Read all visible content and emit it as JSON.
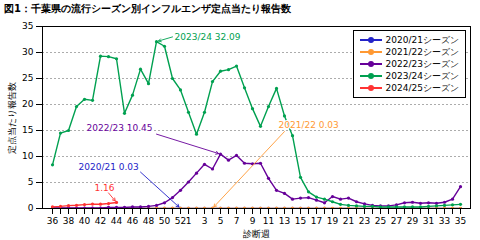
{
  "chart_data": {
    "type": "line",
    "title": "図1：千葉県の流行シーズン別インフルエンザ定点当たり報告数",
    "x_label": "診断週",
    "y_label": "定点当たり報告数",
    "categories": [
      "36",
      null,
      "38",
      null,
      "40",
      null,
      "42",
      null,
      "44",
      null,
      "46",
      null,
      "48",
      null,
      "50",
      null,
      "52",
      "1",
      null,
      "3",
      null,
      "5",
      null,
      "7",
      null,
      "9",
      null,
      "11",
      null,
      "13",
      null,
      "15",
      null,
      "17",
      null,
      "19",
      null,
      "21",
      null,
      "23",
      null,
      "25",
      null,
      "27",
      null,
      "29",
      null,
      "31",
      null,
      "33",
      null,
      "35"
    ],
    "series": [
      {
        "name": "2020/21シーズン",
        "color": "#2323c8",
        "values": [
          0.02,
          0.02,
          0.03,
          0.02,
          0.03,
          0.03,
          0.02,
          0.03,
          0.02,
          0.03,
          0.02,
          0.03,
          0.03,
          0.02,
          0.03,
          0.02,
          0.03,
          0.03,
          0.02,
          0.02,
          0.01,
          0.02,
          0.02,
          0.01,
          0.01,
          0.01,
          0.02,
          0.01,
          0.01,
          0.01,
          0.01,
          0.01,
          0.01,
          0.01,
          0.01,
          0,
          0,
          0,
          0.01,
          0,
          0,
          0,
          0,
          0.01,
          0,
          0,
          0,
          0,
          0,
          0,
          0,
          0
        ]
      },
      {
        "name": "2021/22シーズン",
        "color": "#ff9933",
        "values": [
          0.01,
          0.01,
          0.01,
          0.01,
          0.01,
          0.01,
          0.01,
          0.01,
          0.01,
          0.01,
          0.01,
          0.01,
          0.01,
          0.01,
          0.01,
          0.01,
          0.01,
          0.01,
          0.02,
          0.02,
          0.03,
          0.03,
          0.03,
          0.03,
          0.03,
          0.02,
          0.02,
          0.02,
          0.02,
          0.02,
          0.02,
          0.02,
          0.02,
          0.02,
          0.02,
          0.02,
          0.02,
          0.02,
          0.02,
          0.02,
          0.02,
          0.02,
          0.02,
          0.02,
          0.02,
          0.02,
          0.02,
          0.02,
          0.02,
          0.02,
          0.02,
          0.02
        ]
      },
      {
        "name": "2022/23シーズン",
        "color": "#660099",
        "values": [
          0.1,
          0.1,
          0.1,
          0.1,
          0.1,
          0.1,
          0.1,
          0.2,
          0.2,
          0.2,
          0.3,
          0.3,
          0.4,
          0.6,
          1.1,
          2.1,
          3.5,
          5.1,
          6.8,
          8.5,
          7.6,
          10.45,
          9.3,
          10.2,
          8.7,
          8.6,
          8.7,
          5.8,
          3.5,
          2.9,
          1.8,
          2.0,
          2.1,
          1.6,
          1.1,
          2.3,
          1.8,
          2.0,
          1.3,
          0.9,
          0.6,
          0.5,
          0.5,
          0.7,
          1.1,
          1.2,
          1.0,
          1.1,
          1.0,
          1.2,
          1.8,
          4.2
        ]
      },
      {
        "name": "2023/24シーズン",
        "color": "#00a050",
        "values": [
          8.4,
          14.5,
          15,
          19.6,
          21,
          20.8,
          29.3,
          29.2,
          28.8,
          18.3,
          21.8,
          26.8,
          24,
          32.09,
          31.2,
          25,
          22.8,
          18.5,
          14.3,
          18.5,
          24.4,
          26.4,
          26.7,
          27.4,
          23.2,
          19.2,
          15.8,
          19.6,
          23.1,
          17.8,
          14,
          6,
          3.2,
          2.2,
          1.8,
          1.3,
          0.8,
          0.6,
          0.5,
          0.4,
          0.4,
          0.3,
          0.3,
          0.3,
          0.3,
          0.3,
          0.3,
          0.4,
          0.5,
          0.6,
          0.7,
          0.8
        ]
      },
      {
        "name": "2024/25シーズン",
        "color": "#ff3333",
        "values": [
          0.32,
          0.4,
          0.55,
          0.62,
          0.75,
          0.85,
          0.83,
          0.95,
          1.16,
          null,
          null,
          null,
          null,
          null,
          null,
          null,
          null,
          null,
          null,
          null,
          null,
          null,
          null,
          null,
          null,
          null,
          null,
          null,
          null,
          null,
          null,
          null,
          null,
          null,
          null,
          null,
          null,
          null,
          null,
          null,
          null,
          null,
          null,
          null,
          null,
          null,
          null,
          null,
          null,
          null,
          null,
          null
        ]
      }
    ],
    "annotations": [
      "2020/21 0.03",
      "2021/22 0.03",
      "2022/23 10.45",
      "2023/24 32.09",
      "1.16"
    ],
    "ylim": [
      0,
      35
    ],
    "yticks": [
      0,
      5,
      10,
      15,
      20,
      25,
      30,
      35
    ],
    "grid": true,
    "legend": "top-right",
    "marker": "circle"
  }
}
